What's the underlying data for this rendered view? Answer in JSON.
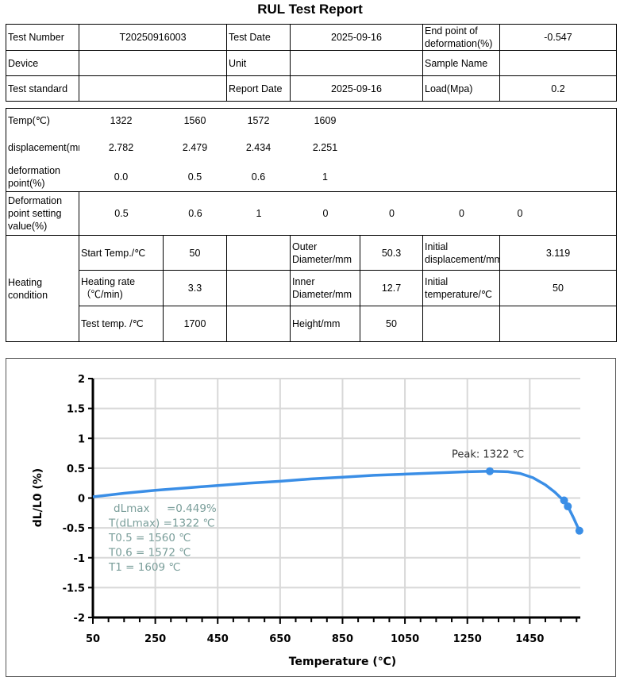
{
  "title": "RUL Test Report",
  "info": {
    "test_number_label": "Test Number",
    "test_number": "T20250916003",
    "test_date_label": "Test Date",
    "test_date": "2025-09-16",
    "end_point_label": "End point of deformation(%)",
    "end_point": "-0.547",
    "device_label": "Device",
    "device": "",
    "unit_label": "Unit",
    "unit": "",
    "sample_name_label": "Sample Name",
    "sample_name": "",
    "test_standard_label": "Test standard",
    "test_standard": "",
    "report_date_label": "Report Date",
    "report_date": "2025-09-16",
    "load_label": "Load(Mpa)",
    "load": "0.2"
  },
  "results": {
    "temp_label": "Temp(℃)",
    "temps": [
      "1322",
      "1560",
      "1572",
      "1609"
    ],
    "disp_label": "displacement(mm)",
    "disps": [
      "2.782",
      "2.479",
      "2.434",
      "2.251"
    ],
    "deform_label": "deformation point(%)",
    "deforms": [
      "0.0",
      "0.5",
      "0.6",
      "1"
    ],
    "setting_label": "Deformation point setting value(%)",
    "settings": [
      "0.5",
      "0.6",
      "1",
      "0",
      "0",
      "0",
      "0"
    ]
  },
  "heating": {
    "label": "Heating condition",
    "start_temp_label": "Start Temp./℃",
    "start_temp": "50",
    "rate_label": "Heating rate（℃/min)",
    "rate": "3.3",
    "test_temp_label": "Test temp. /℃",
    "test_temp": "1700",
    "outer_label": "Outer Diameter/mm",
    "outer": "50.3",
    "inner_label": "Inner Diameter/mm",
    "inner": "12.7",
    "height_label": "Height/mm",
    "height": "50",
    "init_disp_label": "Initial displacement/mm",
    "init_disp": "3.119",
    "init_temp_label": "Initial temperature/℃",
    "init_temp": "50"
  },
  "chart_data": {
    "type": "line",
    "xlabel": "Temperature (℃)",
    "ylabel": "dL/L0 (%)",
    "xlim": [
      50,
      1612
    ],
    "ylim": [
      -2,
      2
    ],
    "xticks": [
      50,
      250,
      450,
      650,
      850,
      1050,
      1250,
      1450
    ],
    "yticks": [
      2,
      1.5,
      1,
      0.5,
      0,
      -0.5,
      -1,
      -1.5,
      -2
    ],
    "grid": true,
    "line_color": "#3a8ee6",
    "x": [
      50,
      150,
      250,
      350,
      450,
      550,
      650,
      750,
      850,
      950,
      1050,
      1150,
      1250,
      1322,
      1380,
      1420,
      1460,
      1500,
      1530,
      1550,
      1560,
      1572,
      1590,
      1609
    ],
    "y": [
      0.02,
      0.08,
      0.13,
      0.17,
      0.21,
      0.25,
      0.28,
      0.32,
      0.35,
      0.38,
      0.4,
      0.42,
      0.44,
      0.449,
      0.44,
      0.41,
      0.34,
      0.22,
      0.1,
      0.0,
      -0.04,
      -0.14,
      -0.33,
      -0.547
    ],
    "markers": [
      {
        "x": 1322,
        "y": 0.449
      },
      {
        "x": 1560,
        "y": -0.04
      },
      {
        "x": 1572,
        "y": -0.14
      },
      {
        "x": 1609,
        "y": -0.547
      }
    ],
    "peak_label": "Peak: 1322 ℃",
    "annotations": [
      "dLmax     =0.449%",
      "T(dLmax) =1322 ℃",
      "T0.5 = 1560 ℃",
      "T0.6 = 1572 ℃",
      "T1 = 1609 ℃"
    ]
  }
}
